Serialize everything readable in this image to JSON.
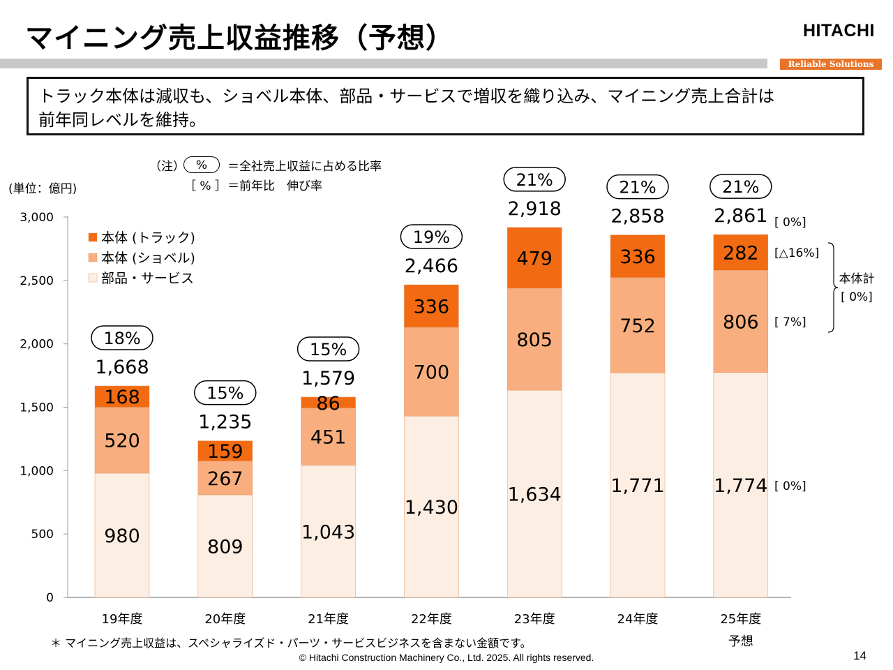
{
  "header": {
    "title": "マイニング売上収益推移（予想）",
    "logo": "HITACHI",
    "tagline": "Reliable Solutions"
  },
  "summary": {
    "line1": "トラック本体は減収も、ショベル本体、部品・サービスで増収を織り込み、マイニング売上合計は",
    "line2": "前年同レベルを維持。"
  },
  "notes": {
    "note_prefix": "（注）",
    "note_badge": "%",
    "note_badge_desc": "＝全社売上収益に占める比率",
    "note_bracket": "［ % ］",
    "note_bracket_desc": "＝前年比　伸び率",
    "unit": "(単位：億円)"
  },
  "chart_data": {
    "type": "bar",
    "stacked": true,
    "categories": [
      "19年度",
      "20年度",
      "21年度",
      "22年度",
      "23年度",
      "24年度",
      "25年度"
    ],
    "category_sublabels": [
      "",
      "",
      "",
      "",
      "",
      "",
      "予想"
    ],
    "ylim": [
      0,
      3000
    ],
    "yticks": [
      0,
      500,
      1000,
      1500,
      2000,
      2500,
      3000
    ],
    "ytick_labels": [
      "0",
      "500",
      "1,000",
      "1,500",
      "2,000",
      "2,500",
      "3,000"
    ],
    "series": [
      {
        "name": "部品・サービス",
        "color": "#fdeee3",
        "values": [
          980,
          809,
          1043,
          1430,
          1634,
          1771,
          1774
        ],
        "labels": [
          "980",
          "809",
          "1,043",
          "1,430",
          "1,634",
          "1,771",
          "1,774"
        ]
      },
      {
        "name": "本体 (ショベル)",
        "color": "#f8ae7e",
        "values": [
          520,
          267,
          451,
          700,
          805,
          752,
          806
        ],
        "labels": [
          "520",
          "267",
          "451",
          "700",
          "805",
          "752",
          "806"
        ]
      },
      {
        "name": "本体 (トラック)",
        "color": "#f26b12",
        "values": [
          168,
          159,
          86,
          336,
          479,
          336,
          282
        ],
        "labels": [
          "168",
          "159",
          "86",
          "336",
          "479",
          "336",
          "282"
        ]
      }
    ],
    "legend_order": [
      2,
      1,
      0
    ],
    "totals": [
      1668,
      1235,
      1579,
      2466,
      2918,
      2858,
      2861
    ],
    "total_labels": [
      "1,668",
      "1,235",
      "1,579",
      "2,466",
      "2,918",
      "2,858",
      "2,861"
    ],
    "share_labels": [
      "18%",
      "15%",
      "15%",
      "19%",
      "21%",
      "21%",
      "21%"
    ],
    "growth_annotations": {
      "total": "[ 0%]",
      "truck": "[△16%]",
      "shovel": "[ 7%]",
      "parts": "[ 0%]",
      "body_total_label": "本体計",
      "body_total_value": "[ 0%]"
    },
    "legend_position": "top-left"
  },
  "footer": {
    "footnote": "＊ マイニング売上収益は、スペシャライズド・パーツ・サービスビジネスを含まない金額です。",
    "copyright": "© Hitachi Construction Machinery Co., Ltd. 2025. All rights reserved.",
    "page_number": "14"
  }
}
